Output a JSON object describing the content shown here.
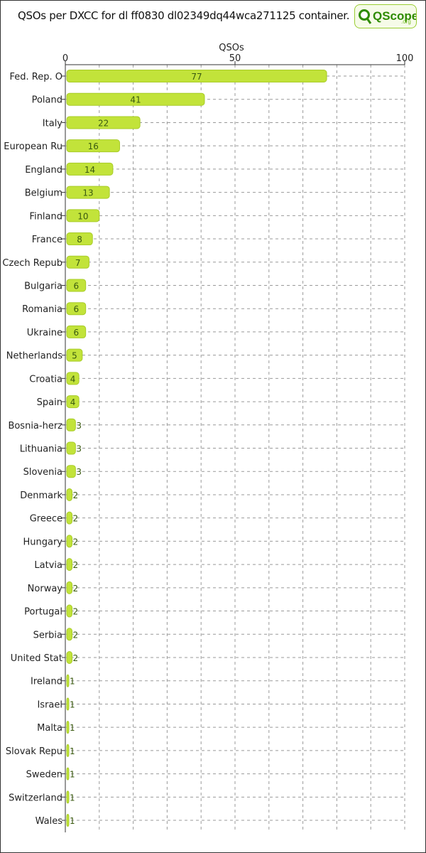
{
  "header": {
    "title": "QSOs per DXCC for dl ff0830 dl02349dq44wca271125 container.",
    "logo_text": "QScope",
    "logo_suffix": ".org"
  },
  "colors": {
    "bar_fill": "#c2e33a",
    "bar_stroke": "#a8cc28",
    "grid": "#999999",
    "logo_green": "#2e8b00"
  },
  "chart_data": {
    "type": "bar",
    "orientation": "horizontal",
    "title": "QSOs per DXCC for dl ff0830 dl02349dq44wca271125 container.",
    "xlabel": "QSOs",
    "ylabel": "",
    "xlim": [
      0,
      100
    ],
    "xticks": [
      0,
      50,
      100
    ],
    "grid": true,
    "categories": [
      "Fed. Rep. O",
      "Poland",
      "Italy",
      "European Ru",
      "England",
      "Belgium",
      "Finland",
      "France",
      "Czech Repub",
      "Bulgaria",
      "Romania",
      "Ukraine",
      "Netherlands",
      "Croatia",
      "Spain",
      "Bosnia-herz",
      "Lithuania",
      "Slovenia",
      "Denmark",
      "Greece",
      "Hungary",
      "Latvia",
      "Norway",
      "Portugal",
      "Serbia",
      "United Stat",
      "Ireland",
      "Israel",
      "Malta",
      "Slovak Repu",
      "Sweden",
      "Switzerland",
      "Wales"
    ],
    "values": [
      77,
      41,
      22,
      16,
      14,
      13,
      10,
      8,
      7,
      6,
      6,
      6,
      5,
      4,
      4,
      3,
      3,
      3,
      2,
      2,
      2,
      2,
      2,
      2,
      2,
      2,
      1,
      1,
      1,
      1,
      1,
      1,
      1
    ]
  }
}
